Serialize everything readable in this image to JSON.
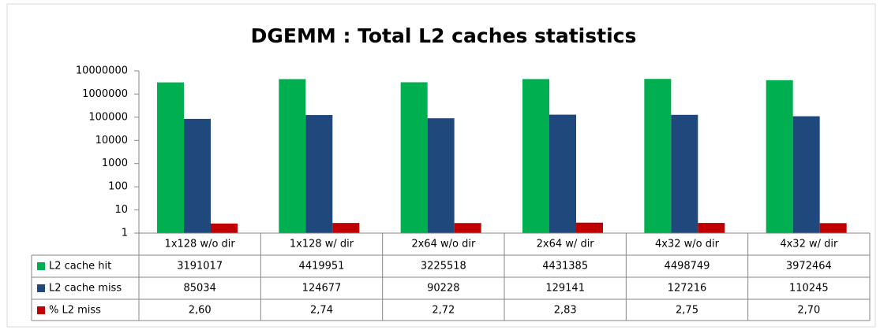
{
  "chart_data": {
    "type": "bar",
    "title": "DGEMM : Total L2 caches statistics",
    "categories": [
      "1x128 w/o dir",
      "1x128 w/ dir",
      "2x64 w/o dir",
      "2x64 w/ dir",
      "4x32 w/o dir",
      "4x32 w/ dir"
    ],
    "series": [
      {
        "name": "L2 cache hit",
        "color": "#00b050",
        "values": [
          3191017,
          4419951,
          3225518,
          4431385,
          4498749,
          3972464
        ]
      },
      {
        "name": "L2 cache miss",
        "color": "#1f497d",
        "values": [
          85034,
          124677,
          90228,
          129141,
          127216,
          110245
        ]
      },
      {
        "name": "% L2 miss",
        "color": "#c00000",
        "values": [
          2.6,
          2.74,
          2.72,
          2.83,
          2.75,
          2.7
        ],
        "value_labels": [
          "2,60",
          "2,74",
          "2,72",
          "2,83",
          "2,75",
          "2,70"
        ]
      }
    ],
    "yscale": "log",
    "ylim": [
      1,
      10000000
    ],
    "yticks": [
      1,
      10,
      100,
      1000,
      10000,
      100000,
      1000000,
      10000000
    ],
    "grid": false
  }
}
